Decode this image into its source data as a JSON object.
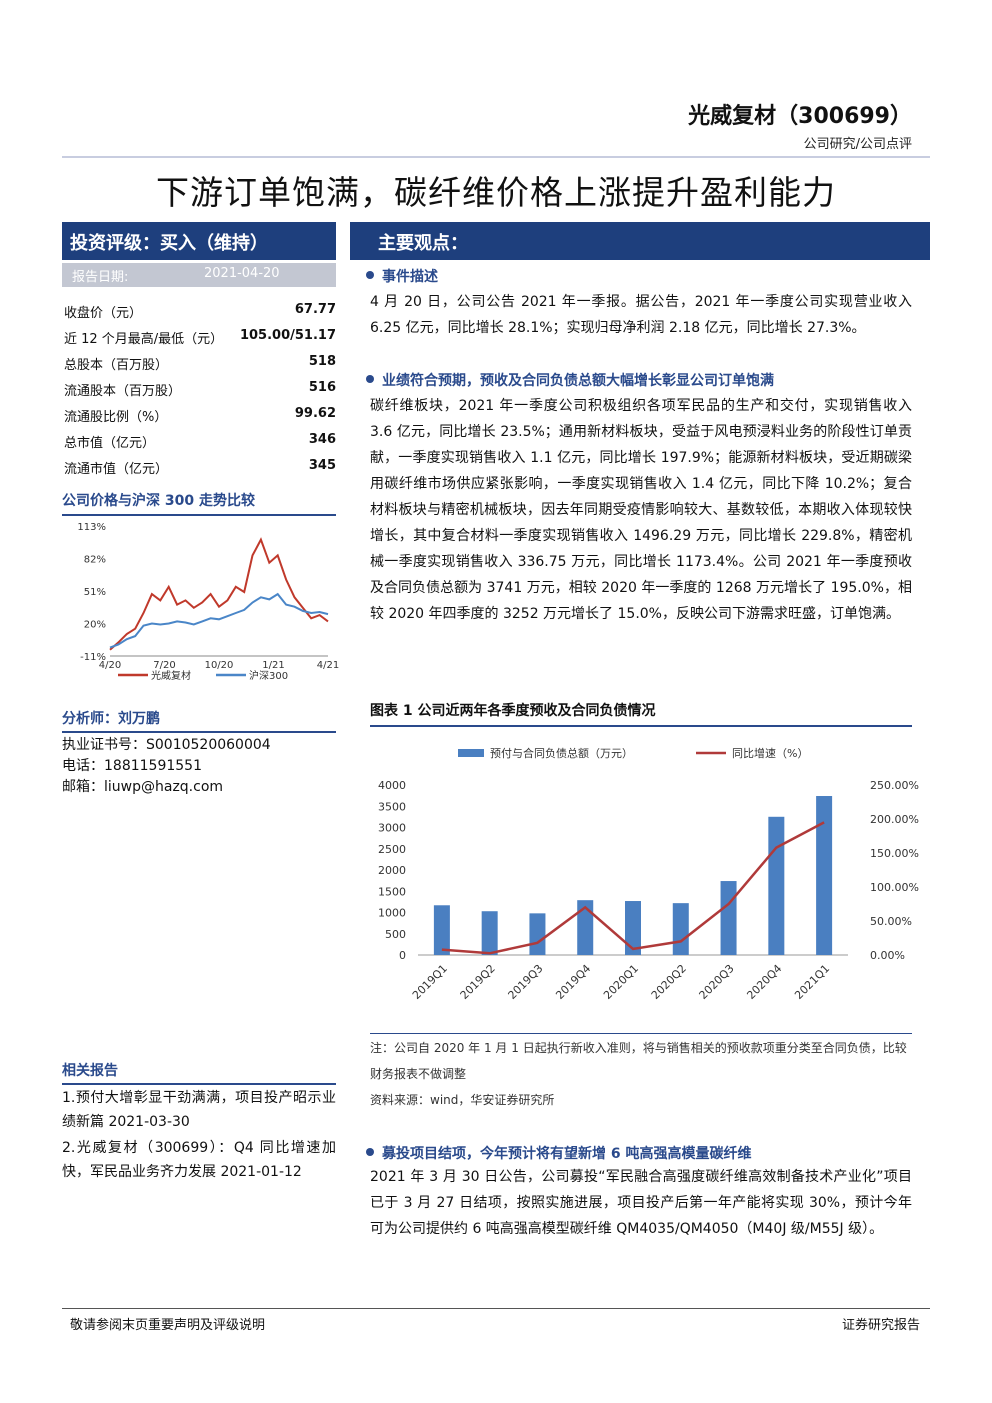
{
  "header": {
    "company": "光威复材（300699）",
    "report_type": "公司研究/公司点评",
    "headline": "下游订单饱满，碳纤维价格上涨提升盈利能力"
  },
  "left": {
    "rating": "投资评级：买入（维持）",
    "report_date_label": "报告日期:",
    "report_date_value": "2021-04-20",
    "stats": [
      {
        "label": "收盘价（元）",
        "value": "67.77"
      },
      {
        "label": "近 12 个月最高/最低（元）",
        "value": "105.00/51.17"
      },
      {
        "label": "总股本（百万股）",
        "value": "518"
      },
      {
        "label": "流通股本（百万股）",
        "value": "516"
      },
      {
        "label": "流通股比例（%）",
        "value": "99.62"
      },
      {
        "label": "总市值（亿元）",
        "value": "346"
      },
      {
        "label": "流通市值（亿元）",
        "value": "345"
      }
    ],
    "chart_title": "公司价格与沪深 300 走势比较",
    "analyst_title": "分析师：刘万鹏",
    "cert": "执业证书号：S0010520060004",
    "phone": "电话：18811591551",
    "email": "邮箱：liuwp@hazq.com",
    "related_title": "相关报告",
    "related": [
      "1.预付大增彰显干劲满满，项目投产昭示业绩新篇 2021-03-30",
      "2.光威复材（300699）：Q4 同比增速加快，军民品业务齐力发展 2021-01-12"
    ]
  },
  "right": {
    "views_title": "主要观点：",
    "sec1_head": "事件描述",
    "sec1_body": "4 月 20 日，公司公告 2021 年一季报。据公告，2021 年一季度公司实现营业收入 6.25 亿元，同比增长 28.1%；实现归母净利润 2.18 亿元，同比增长 27.3%。",
    "sec2_head": "业绩符合预期，预收及合同负债总额大幅增长彰显公司订单饱满",
    "sec2_body": "碳纤维板块，2021 年一季度公司积极组织各项军民品的生产和交付，实现销售收入 3.6 亿元，同比增长 23.5%；通用新材料板块，受益于风电预浸料业务的阶段性订单贡献，一季度实现销售收入 1.1 亿元，同比增长 197.9%；能源新材料板块，受近期碳梁用碳纤维市场供应紧张影响，一季度实现销售收入 1.4 亿元，同比下降 10.2%；复合材料板块与精密机械板块，因去年同期受疫情影响较大、基数较低，本期收入体现较快增长，其中复合材料一季度实现销售收入 1496.29 万元，同比增长 229.8%，精密机械一季度实现销售收入 336.75 万元，同比增长 1173.4%。公司 2021 年一季度预收及合同负债总额为 3741 万元，相较 2020 年一季度的 1268 万元增长了 195.0%，相较 2020 年四季度的 3252 万元增长了 15.0%，反映公司下游需求旺盛，订单饱满。",
    "fig_title": "图表 1 公司近两年各季度预收及合同负债情况",
    "note": "注：公司自 2020 年 1 月 1 日起执行新收入准则，将与销售相关的预收款项重分类至合同负债，比较财务报表不做调整",
    "source": "资料来源：wind，华安证券研究所",
    "sec3_head": "募投项目结项，今年预计将有望新增 6 吨高强高模量碳纤维",
    "sec3_body": "2021 年 3 月 30 日公告，公司募投“军民融合高强度碳纤维高效制备技术产业化”项目已于 3 月 27 日结项，按照实施进展，项目投产后第一年产能将实现 30%，预计今年可为公司提供约 6 吨高强高模型碳纤维 QM4035/QM4050（M40J 级/M55J 级）。"
  },
  "footer": {
    "left": "敬请参阅末页重要声明及评级说明",
    "right": "证券研究报告"
  },
  "chart_data": [
    {
      "type": "line",
      "x_ticks": [
        "4/20",
        "7/20",
        "10/20",
        "1/21",
        "4/21"
      ],
      "y_ticks": [
        "113%",
        "82%",
        "51%",
        "20%",
        "-11%"
      ],
      "ylim": [
        -11,
        113
      ],
      "series": [
        {
          "name": "光威复材",
          "color": "#c0392b",
          "values": [
            -5,
            2,
            10,
            15,
            30,
            48,
            42,
            55,
            38,
            42,
            35,
            40,
            48,
            36,
            42,
            55,
            50,
            85,
            100,
            78,
            85,
            62,
            45,
            35,
            25,
            28,
            22
          ]
        },
        {
          "name": "沪深300",
          "color": "#4a86c8",
          "values": [
            -3,
            0,
            5,
            8,
            18,
            20,
            19,
            20,
            22,
            21,
            19,
            22,
            25,
            24,
            27,
            30,
            33,
            40,
            45,
            43,
            48,
            38,
            36,
            32,
            30,
            31,
            29
          ]
        }
      ]
    },
    {
      "type": "bar",
      "categories": [
        "2019Q1",
        "2019Q2",
        "2019Q3",
        "2019Q4",
        "2020Q1",
        "2020Q2",
        "2020Q3",
        "2020Q4",
        "2021Q1"
      ],
      "series": [
        {
          "name": "预付与合同负债总额（万元）",
          "type": "bar",
          "axis": "left",
          "color": "#4a7fc1",
          "values": [
            1170,
            1030,
            980,
            1290,
            1270,
            1220,
            1740,
            3252,
            3741
          ]
        },
        {
          "name": "同比增速（%）",
          "type": "line",
          "axis": "right",
          "color": "#b03a3a",
          "values": [
            8.0,
            2.5,
            18.0,
            70.0,
            9.0,
            20.0,
            75.0,
            158.0,
            195.0
          ]
        }
      ],
      "y_left_ticks": [
        "4000",
        "3500",
        "3000",
        "2500",
        "2000",
        "1500",
        "1000",
        "500",
        "0"
      ],
      "y_right_ticks": [
        "250.00%",
        "200.00%",
        "150.00%",
        "100.00%",
        "50.00%",
        "0.00%"
      ],
      "ylim_left": [
        0,
        4000
      ],
      "ylim_right": [
        0,
        250
      ]
    }
  ]
}
